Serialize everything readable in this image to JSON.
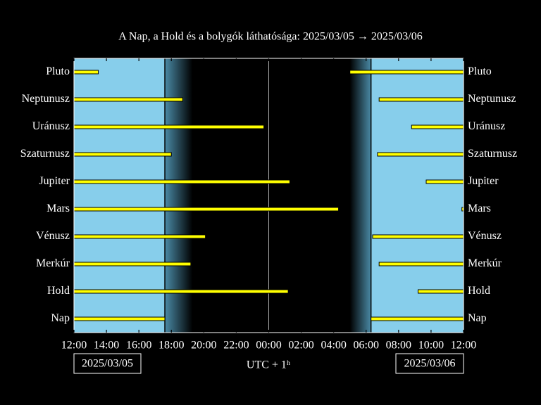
{
  "chart_data": {
    "type": "visibility",
    "title": "A Nap, a Hold és a bolygók láthatósága: 2025/03/05 → 2025/03/06",
    "x_label": "UTC + 1ʰ",
    "start_date": "2025/03/05",
    "end_date": "2025/03/06",
    "categories": [
      "Pluto",
      "Neptunusz",
      "Uránusz",
      "Szaturnusz",
      "Jupiter",
      "Mars",
      "Vénusz",
      "Merkúr",
      "Hold",
      "Nap"
    ],
    "intervals": [
      [
        [
          12,
          13.5
        ],
        [
          29,
          36
        ]
      ],
      [
        [
          12,
          18.7
        ],
        [
          30.8,
          36
        ]
      ],
      [
        [
          12,
          23.7
        ],
        [
          32.8,
          36
        ]
      ],
      [
        [
          12,
          18.0
        ],
        [
          30.7,
          36
        ]
      ],
      [
        [
          12,
          25.3
        ],
        [
          33.7,
          36
        ]
      ],
      [
        [
          12,
          28.3
        ],
        [
          35.9,
          36
        ]
      ],
      [
        [
          12,
          20.1
        ],
        [
          30.4,
          36
        ]
      ],
      [
        [
          12,
          19.2
        ],
        [
          30.8,
          36
        ]
      ],
      [
        [
          12,
          25.2
        ],
        [
          33.2,
          36
        ]
      ],
      [
        [
          12,
          17.6
        ],
        [
          30.3,
          36
        ]
      ]
    ],
    "twilight": [
      19.3,
      29.0
    ],
    "color": "#ffff00",
    "day_color": "#87ceeb",
    "xlim": [
      12,
      36
    ],
    "xticks": [
      {
        "value": 12,
        "label": "12:00"
      },
      {
        "value": 14,
        "label": "14:00"
      },
      {
        "value": 16,
        "label": "16:00"
      },
      {
        "value": 18,
        "label": "18:00"
      },
      {
        "value": 20,
        "label": "20:00"
      },
      {
        "value": 22,
        "label": "22:00"
      },
      {
        "value": 24,
        "label": "00:00"
      },
      {
        "value": 26,
        "label": "02:00"
      },
      {
        "value": 28,
        "label": "04:00"
      },
      {
        "value": 30,
        "label": "06:00"
      },
      {
        "value": 32,
        "label": "08:00"
      },
      {
        "value": 34,
        "label": "10:00"
      },
      {
        "value": 36,
        "label": "12:00"
      }
    ]
  }
}
